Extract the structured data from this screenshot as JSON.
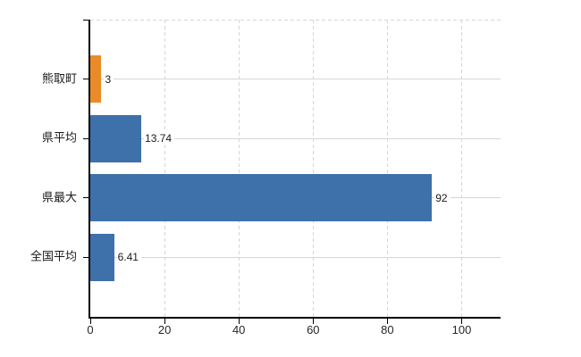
{
  "chart_data": {
    "type": "bar",
    "orientation": "horizontal",
    "title": "",
    "xlabel": "",
    "ylabel": "",
    "categories": [
      "熊取町",
      "県平均",
      "県最大",
      "全国平均"
    ],
    "values": [
      3,
      13.74,
      92,
      6.41
    ],
    "value_labels": [
      "3",
      "13.74",
      "92",
      "6.41"
    ],
    "bar_colors": [
      "#ea8b29",
      "#3e70a9",
      "#3e70a9",
      "#3e70a9"
    ],
    "x_ticks": [
      "0",
      "20",
      "40",
      "60",
      "80",
      "100"
    ],
    "x_tick_values": [
      0,
      20,
      40,
      60,
      80,
      100
    ],
    "xlim": [
      0,
      110.5
    ],
    "grid": {
      "vertical": "dashed",
      "horizontal": "solid",
      "top_border": "dashed"
    },
    "legend": "none"
  },
  "colors": {
    "bar_blue": "#3e70a9",
    "bar_orange": "#ea8b29",
    "gridline": "#d6d6d6",
    "axis": "#000000",
    "label_text": "#1a1a1a",
    "tick_text": "#262626",
    "background": "#ffffff"
  }
}
